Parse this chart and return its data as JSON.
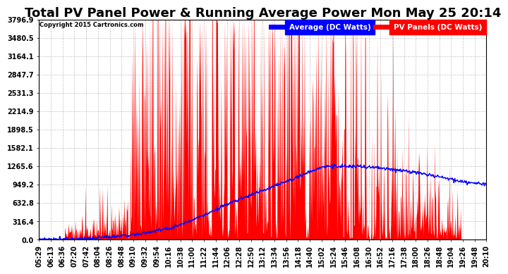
{
  "title": "Total PV Panel Power & Running Average Power Mon May 25 20:14",
  "copyright": "Copyright 2015 Cartronics.com",
  "legend_avg": "Average (DC Watts)",
  "legend_pv": "PV Panels (DC Watts)",
  "ymin": 0.0,
  "ymax": 3796.9,
  "ytick_values": [
    0.0,
    316.4,
    632.8,
    949.2,
    1265.6,
    1582.1,
    1898.5,
    2214.9,
    2531.3,
    2847.7,
    3164.1,
    3480.5,
    3796.9
  ],
  "xtick_labels": [
    "05:29",
    "06:13",
    "06:36",
    "07:20",
    "07:42",
    "08:04",
    "08:26",
    "08:48",
    "09:10",
    "09:32",
    "09:54",
    "10:16",
    "10:38",
    "11:00",
    "11:22",
    "11:44",
    "12:06",
    "12:28",
    "12:50",
    "13:12",
    "13:34",
    "13:56",
    "14:18",
    "14:40",
    "15:02",
    "15:24",
    "15:46",
    "16:08",
    "16:30",
    "16:52",
    "17:16",
    "17:38",
    "18:00",
    "18:26",
    "18:48",
    "19:04",
    "19:26",
    "19:48",
    "20:10"
  ],
  "background_color": "#ffffff",
  "grid_color": "#aaaaaa",
  "pv_color": "#ff0000",
  "avg_color": "#0000ff",
  "title_fontsize": 13,
  "axis_fontsize": 7.0
}
